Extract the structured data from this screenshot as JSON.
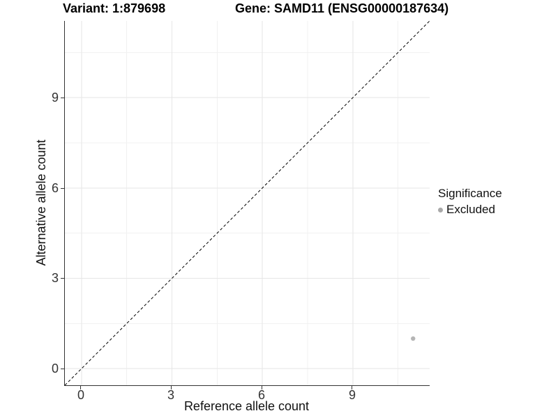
{
  "titles": {
    "variant_title": "Variant: 1:879698",
    "gene_title": "Gene: SAMD11 (ENSG00000187634)"
  },
  "axes": {
    "x": {
      "label": "Reference allele count",
      "tick_labels": [
        "0",
        "3",
        "6",
        "9"
      ]
    },
    "y": {
      "label": "Alternative allele count",
      "tick_labels": [
        "0",
        "3",
        "6",
        "9"
      ]
    }
  },
  "legend": {
    "title": "Significance",
    "items": [
      {
        "label": "Excluded",
        "marker_color": "#a9a9a9"
      }
    ]
  },
  "chart_data": {
    "type": "scatter",
    "title": "Variant: 1:879698 — Gene: SAMD11 (ENSG00000187634)",
    "xlabel": "Reference allele count",
    "ylabel": "Alternative allele count",
    "xlim": [
      -0.55,
      11.55
    ],
    "ylim": [
      -0.55,
      11.55
    ],
    "x_ticks": [
      0,
      3,
      6,
      9
    ],
    "y_ticks": [
      0,
      3,
      6,
      9
    ],
    "minor_breaks": [
      1.5,
      4.5,
      7.5,
      10.5
    ],
    "grid": "major and minor, light gray, white panel background",
    "legend_position": "right",
    "series": [
      {
        "name": "Excluded",
        "color": "#b5b5b5",
        "marker": "circle",
        "points": [
          [
            11,
            1
          ]
        ]
      }
    ],
    "reference_line": {
      "type": "identity",
      "equation": "y = x",
      "style": "dashed",
      "color": "#000000"
    },
    "colors": {
      "grid_major": "#e6e6e6",
      "grid_minor": "#f1f1f1",
      "axis_line": "#333333"
    }
  }
}
